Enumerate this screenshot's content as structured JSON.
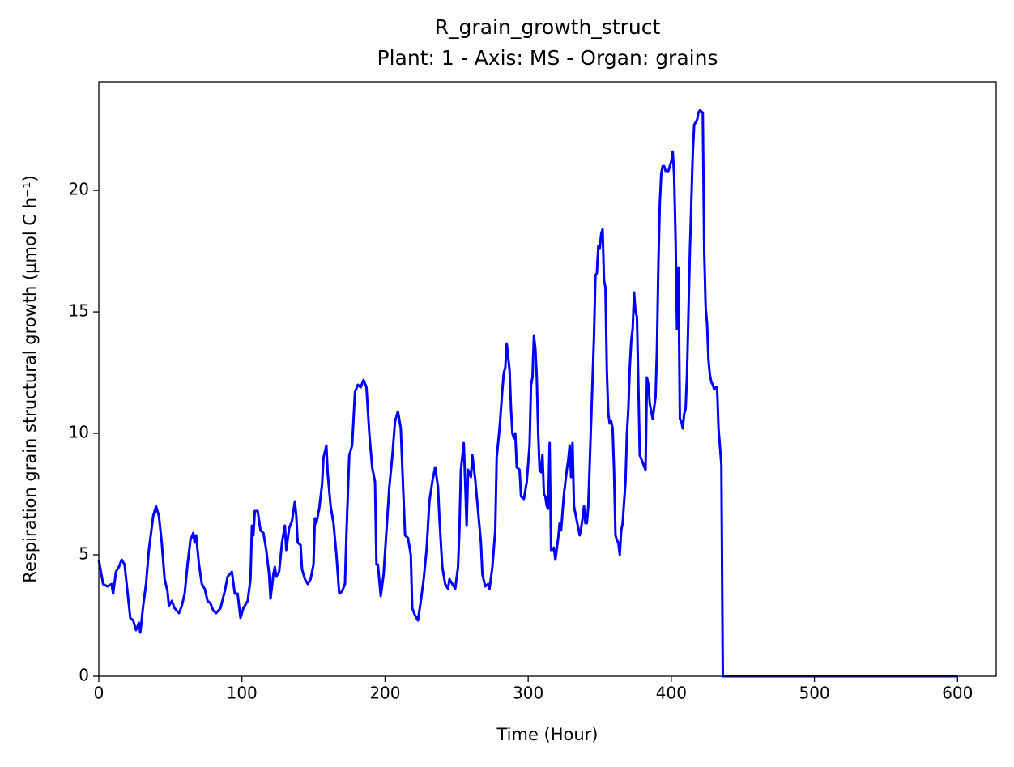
{
  "chart_data": {
    "type": "line",
    "title": "R_grain_growth_struct",
    "subtitle": "Plant: 1 - Axis: MS - Organ: grains",
    "x_label": "Time (Hour)",
    "y_label": "Respiration grain structural growth (μmol C h⁻¹)",
    "color": "#0000ff",
    "xlim": [
      0,
      627
    ],
    "xticks": [
      0,
      100,
      200,
      300,
      400,
      500,
      600
    ],
    "ylim": [
      0,
      24.47
    ],
    "yticks": [
      0,
      5,
      10,
      15,
      20
    ],
    "x": [
      0,
      3,
      6,
      9,
      10,
      12,
      14,
      16,
      18,
      20,
      22,
      24,
      26,
      28,
      29,
      31,
      33,
      35,
      38,
      40,
      42,
      44,
      46,
      48,
      49,
      51,
      53,
      56,
      58,
      60,
      62,
      64,
      66,
      67,
      68,
      70,
      72,
      74,
      76,
      78,
      80,
      82,
      85,
      88,
      90,
      93,
      95,
      97,
      99,
      101,
      104,
      106,
      107,
      108,
      109,
      111,
      113,
      115,
      117,
      119,
      120,
      122,
      123,
      124,
      126,
      128,
      130,
      131,
      133,
      135,
      137,
      138,
      139,
      141,
      142,
      144,
      146,
      148,
      150,
      151,
      152,
      154,
      156,
      157,
      159,
      160,
      162,
      164,
      166,
      168,
      170,
      172,
      173,
      175,
      177,
      179,
      181,
      183,
      185,
      187,
      189,
      191,
      193,
      194,
      195,
      197,
      199,
      201,
      203,
      205,
      207,
      209,
      211,
      213,
      214,
      216,
      218,
      219,
      221,
      223,
      225,
      227,
      229,
      231,
      233,
      235,
      237,
      238,
      240,
      242,
      244,
      245,
      247,
      249,
      251,
      252,
      253,
      255,
      256,
      257,
      258,
      260,
      261,
      263,
      265,
      267,
      268,
      270,
      272,
      273,
      275,
      277,
      278,
      280,
      282,
      283,
      284,
      285,
      287,
      288,
      289,
      290,
      291,
      292,
      294,
      295,
      297,
      299,
      301,
      302,
      303,
      304,
      305,
      306,
      307,
      308,
      309,
      310,
      311,
      312,
      313,
      314,
      315,
      316,
      317,
      318,
      319,
      321,
      322,
      323,
      325,
      327,
      328,
      329,
      330,
      331,
      332,
      334,
      336,
      337,
      338,
      339,
      340,
      341,
      342,
      344,
      346,
      347,
      348,
      349,
      350,
      351,
      352,
      353,
      354,
      355,
      356,
      357,
      358,
      359,
      360,
      361,
      362,
      363,
      364,
      365,
      366,
      368,
      369,
      370,
      371,
      372,
      373,
      374,
      375,
      376,
      377,
      378,
      380,
      382,
      383,
      384,
      385,
      387,
      389,
      390,
      391,
      392,
      393,
      394,
      395,
      396,
      398,
      400,
      401,
      402,
      403,
      404,
      405,
      406,
      407,
      408,
      409,
      410,
      411,
      412,
      413,
      414,
      415,
      416,
      418,
      419,
      420,
      422,
      423,
      424,
      425,
      426,
      427,
      428,
      429,
      430,
      431,
      432,
      433,
      435,
      436,
      600
    ],
    "values": [
      4.8,
      3.8,
      3.7,
      3.8,
      3.4,
      4.3,
      4.5,
      4.8,
      4.6,
      3.5,
      2.4,
      2.3,
      1.9,
      2.2,
      1.8,
      2.9,
      3.8,
      5.2,
      6.6,
      7.0,
      6.6,
      5.5,
      4.0,
      3.5,
      2.9,
      3.1,
      2.8,
      2.6,
      2.9,
      3.4,
      4.6,
      5.6,
      5.9,
      5.5,
      5.8,
      4.6,
      3.8,
      3.6,
      3.1,
      3.0,
      2.7,
      2.6,
      2.8,
      3.5,
      4.1,
      4.3,
      3.4,
      3.4,
      2.4,
      2.8,
      3.1,
      4.0,
      6.2,
      5.8,
      6.8,
      6.8,
      6.0,
      5.9,
      5.2,
      4.2,
      3.2,
      4.2,
      4.5,
      4.1,
      4.3,
      5.5,
      6.2,
      5.2,
      6.1,
      6.4,
      7.2,
      6.6,
      5.5,
      5.4,
      4.4,
      4.0,
      3.8,
      4.0,
      4.6,
      6.5,
      6.3,
      6.9,
      7.9,
      9.0,
      9.5,
      8.3,
      7.0,
      6.3,
      5.0,
      3.4,
      3.5,
      3.8,
      5.8,
      9.1,
      9.5,
      11.7,
      12.0,
      11.9,
      12.2,
      11.9,
      10.0,
      8.6,
      8.0,
      4.6,
      4.6,
      3.3,
      4.2,
      6.0,
      7.8,
      9.0,
      10.5,
      10.9,
      10.2,
      7.2,
      5.8,
      5.7,
      5.0,
      2.8,
      2.5,
      2.3,
      3.1,
      4.0,
      5.2,
      7.2,
      8.0,
      8.6,
      7.8,
      6.5,
      4.5,
      3.8,
      3.6,
      4.0,
      3.8,
      3.6,
      4.5,
      6.1,
      8.5,
      9.6,
      8.0,
      6.2,
      8.5,
      8.2,
      9.1,
      8.1,
      6.8,
      5.5,
      4.2,
      3.7,
      3.8,
      3.6,
      4.5,
      6.0,
      9.0,
      10.2,
      11.8,
      12.5,
      12.7,
      13.7,
      12.6,
      11.0,
      10.0,
      9.8,
      10.0,
      8.6,
      8.5,
      7.4,
      7.3,
      8.0,
      9.5,
      12.0,
      12.3,
      14.0,
      13.5,
      12.3,
      10.0,
      8.5,
      8.4,
      9.1,
      7.5,
      7.4,
      7.0,
      6.9,
      9.6,
      5.2,
      5.2,
      5.3,
      4.8,
      5.7,
      6.3,
      6.0,
      7.5,
      8.5,
      8.9,
      9.5,
      8.2,
      9.6,
      7.0,
      6.4,
      5.8,
      6.1,
      6.5,
      7.0,
      6.3,
      6.3,
      7.0,
      10.5,
      14.0,
      16.5,
      16.6,
      17.7,
      17.6,
      18.2,
      18.4,
      16.3,
      16.0,
      12.5,
      10.8,
      10.4,
      10.5,
      10.2,
      8.5,
      5.8,
      5.6,
      5.5,
      5.0,
      6.0,
      6.3,
      8.0,
      10.0,
      11.0,
      12.7,
      13.8,
      14.3,
      15.8,
      15.0,
      14.8,
      12.0,
      9.1,
      8.8,
      8.5,
      12.3,
      12.0,
      11.2,
      10.6,
      11.5,
      13.5,
      17.0,
      19.5,
      20.7,
      21.0,
      21.0,
      20.8,
      20.8,
      21.2,
      21.6,
      20.6,
      18.0,
      14.3,
      16.8,
      10.6,
      10.5,
      10.2,
      10.8,
      11.0,
      12.5,
      15.0,
      17.5,
      19.5,
      21.5,
      22.7,
      22.9,
      23.2,
      23.3,
      23.2,
      17.5,
      15.2,
      14.5,
      13.0,
      12.4,
      12.1,
      12.0,
      11.8,
      11.9,
      11.9,
      10.2,
      8.7,
      0,
      0
    ]
  }
}
